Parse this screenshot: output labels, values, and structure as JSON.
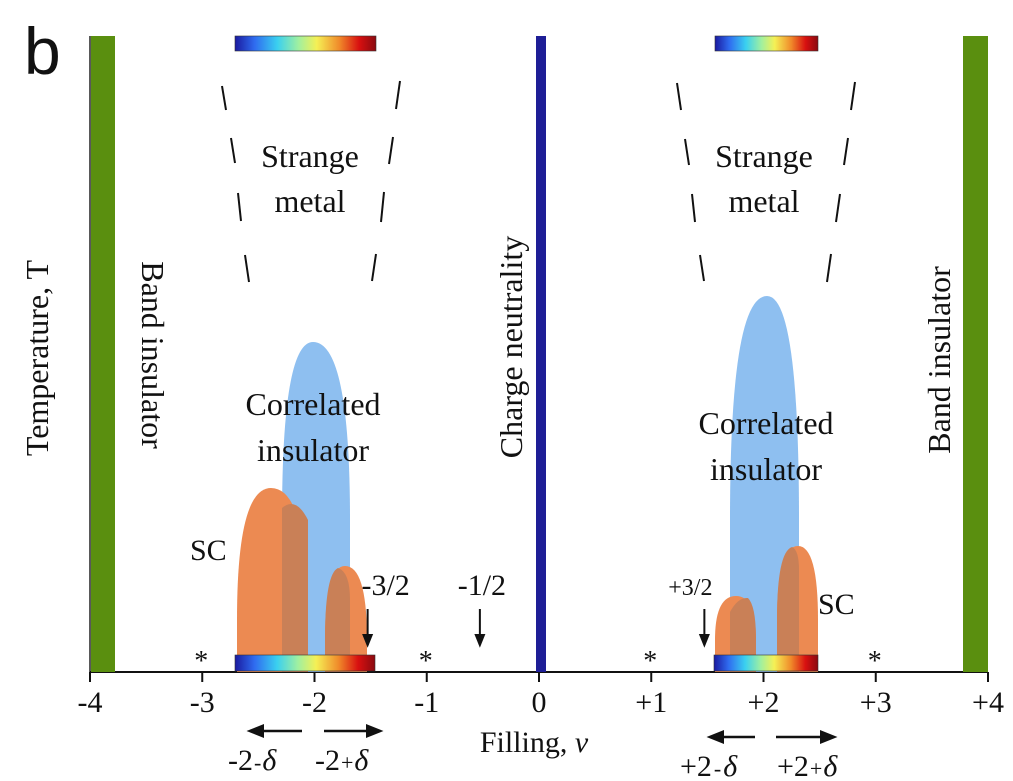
{
  "panel_label": "b",
  "axes": {
    "xlabel_text": "Filling, ",
    "xlabel_symbol": "ν",
    "ylabel": "Temperature, T",
    "x_range": [
      -4,
      4
    ],
    "x_ticks": [
      {
        "value": -4,
        "label": "-4"
      },
      {
        "value": -3,
        "label": "-3"
      },
      {
        "value": -2,
        "label": "-2"
      },
      {
        "value": -1,
        "label": "-1"
      },
      {
        "value": 0,
        "label": "0"
      },
      {
        "value": 1,
        "label": "+1"
      },
      {
        "value": 2,
        "label": "+2"
      },
      {
        "value": 3,
        "label": "+3"
      },
      {
        "value": 4,
        "label": "+4"
      }
    ]
  },
  "phases": {
    "band_insulator_left": "Band insulator",
    "band_insulator_right": "Band insulator",
    "charge_neutrality": "Charge neutrality",
    "strange_metal_left": [
      "Strange",
      "metal"
    ],
    "strange_metal_right": [
      "Strange",
      "metal"
    ],
    "correlated_insulator_left": [
      "Correlated",
      "insulator"
    ],
    "correlated_insulator_right": [
      "Correlated",
      "insulator"
    ],
    "sc_left": "SC",
    "sc_right": "SC"
  },
  "markers": {
    "asterisk": "*",
    "asterisk_positions": [
      -3,
      -1,
      1,
      3
    ],
    "arrow_labels": [
      {
        "id": "minus-three-halves",
        "label": "-3/2",
        "x": -1.5
      },
      {
        "id": "minus-one-half",
        "label": "-1/2",
        "x": -0.5
      },
      {
        "id": "plus-three-halves",
        "label": "+3/2",
        "x": 1.5
      }
    ]
  },
  "doping_labels": {
    "left_minus_a": "-2",
    "left_minus_b": "-",
    "left_plus_a": "-2",
    "left_plus_b": "+",
    "right_minus_a": "+2",
    "right_minus_b": "-",
    "right_plus_a": "+2",
    "right_plus_b": "+",
    "delta": "δ"
  },
  "colors": {
    "band_insulator": "#5a8f0f",
    "charge_neutrality": "#1e1e96",
    "correlated_insulator": "#8ebff0",
    "superconductor": "#ec8a52",
    "superconductor_overlap": "#c98057",
    "colorbar": [
      "#1a1aa0",
      "#2f6cf0",
      "#3ad0f0",
      "#a0f0a0",
      "#f5f055",
      "#f08a2a",
      "#d81010",
      "#8a0a10"
    ]
  }
}
